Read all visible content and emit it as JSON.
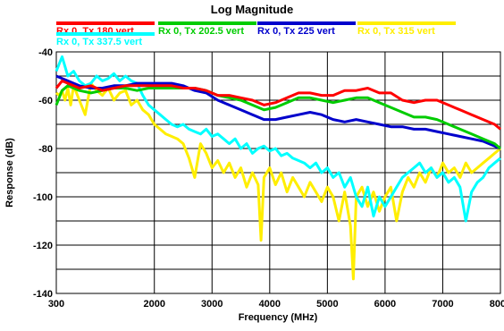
{
  "chart_data": {
    "type": "line",
    "title": "Log Magnitude",
    "xlabel": "Frequency  (MHz)",
    "ylabel": "Response  (dB)",
    "xlim": [
      300,
      8000
    ],
    "ylim": [
      -140,
      -40
    ],
    "x_ticks": [
      300,
      2000,
      3000,
      4000,
      5000,
      6000,
      7000,
      8000
    ],
    "y_ticks": [
      -40,
      -60,
      -80,
      -100,
      -120,
      -140
    ],
    "grid": true,
    "legend_position": "top",
    "series": [
      {
        "name": "Rx 0, Tx 180 vert",
        "color": "#ff0000",
        "x": [
          300,
          400,
          500,
          700,
          900,
          1100,
          1300,
          1500,
          1700,
          1900,
          2100,
          2300,
          2500,
          2700,
          2900,
          3100,
          3300,
          3500,
          3700,
          3900,
          4100,
          4300,
          4500,
          4700,
          4900,
          5100,
          5300,
          5500,
          5700,
          5900,
          6100,
          6300,
          6500,
          6700,
          6900,
          7100,
          7300,
          7500,
          7700,
          7900,
          8000
        ],
        "y": [
          -55,
          -52,
          -53,
          -55,
          -54,
          -56,
          -55,
          -54,
          -54,
          -54,
          -54,
          -54,
          -55,
          -55,
          -56,
          -58,
          -58,
          -59,
          -60,
          -62,
          -61,
          -59,
          -57,
          -57,
          -58,
          -58,
          -56,
          -56,
          -55,
          -57,
          -57,
          -60,
          -61,
          -60,
          -60,
          -62,
          -64,
          -66,
          -68,
          -70,
          -72
        ]
      },
      {
        "name": "Rx 0, Tx 202.5 vert",
        "color": "#00cc00",
        "x": [
          300,
          400,
          500,
          700,
          900,
          1100,
          1300,
          1500,
          1700,
          1900,
          2100,
          2300,
          2500,
          2700,
          2900,
          3100,
          3300,
          3500,
          3700,
          3900,
          4100,
          4300,
          4500,
          4700,
          4900,
          5100,
          5300,
          5500,
          5700,
          5900,
          6100,
          6300,
          6500,
          6700,
          6900,
          7100,
          7300,
          7500,
          7700,
          7900,
          8000
        ],
        "y": [
          -62,
          -56,
          -54,
          -56,
          -57,
          -56,
          -55,
          -55,
          -56,
          -55,
          -55,
          -55,
          -55,
          -55,
          -56,
          -58,
          -59,
          -60,
          -62,
          -64,
          -63,
          -61,
          -59,
          -59,
          -60,
          -61,
          -60,
          -59,
          -59,
          -61,
          -63,
          -65,
          -67,
          -67,
          -68,
          -70,
          -72,
          -74,
          -76,
          -78,
          -80
        ]
      },
      {
        "name": "Rx 0, Tx 225 vert",
        "color": "#0000cc",
        "x": [
          300,
          400,
          500,
          700,
          900,
          1100,
          1300,
          1500,
          1700,
          1900,
          2100,
          2300,
          2500,
          2700,
          2900,
          3100,
          3300,
          3500,
          3700,
          3900,
          4100,
          4300,
          4500,
          4700,
          4900,
          5100,
          5300,
          5500,
          5700,
          5900,
          6100,
          6300,
          6500,
          6700,
          6900,
          7100,
          7300,
          7500,
          7700,
          7900,
          8000
        ],
        "y": [
          -50,
          -51,
          -52,
          -54,
          -55,
          -55,
          -54,
          -54,
          -53,
          -53,
          -53,
          -53,
          -54,
          -56,
          -57,
          -60,
          -62,
          -64,
          -66,
          -68,
          -68,
          -67,
          -66,
          -65,
          -66,
          -68,
          -69,
          -68,
          -69,
          -70,
          -71,
          -71,
          -72,
          -72,
          -73,
          -74,
          -75,
          -76,
          -77,
          -79,
          -80
        ]
      },
      {
        "name": "Rx 0, Tx 315 vert",
        "color": "#ffee00",
        "x": [
          300,
          350,
          400,
          450,
          500,
          550,
          600,
          700,
          800,
          900,
          1000,
          1100,
          1200,
          1300,
          1400,
          1500,
          1600,
          1700,
          1800,
          1900,
          2000,
          2100,
          2200,
          2300,
          2400,
          2500,
          2600,
          2700,
          2800,
          2900,
          3000,
          3100,
          3200,
          3300,
          3400,
          3500,
          3600,
          3700,
          3800,
          3850,
          3900,
          4000,
          4100,
          4200,
          4300,
          4400,
          4500,
          4600,
          4700,
          4800,
          4900,
          5000,
          5100,
          5200,
          5300,
          5400,
          5450,
          5500,
          5600,
          5700,
          5800,
          5900,
          6000,
          6100,
          6200,
          6300,
          6400,
          6500,
          6600,
          6700,
          6800,
          6900,
          7000,
          7100,
          7200,
          7300,
          7400,
          7500,
          7600,
          7700,
          7800,
          7900,
          8000
        ],
        "y": [
          -57,
          -58,
          -56,
          -60,
          -55,
          -62,
          -54,
          -60,
          -66,
          -53,
          -56,
          -58,
          -55,
          -60,
          -57,
          -56,
          -62,
          -60,
          -64,
          -66,
          -70,
          -72,
          -74,
          -75,
          -76,
          -78,
          -84,
          -92,
          -78,
          -82,
          -88,
          -85,
          -90,
          -86,
          -92,
          -88,
          -96,
          -90,
          -95,
          -118,
          -92,
          -88,
          -95,
          -90,
          -98,
          -92,
          -96,
          -100,
          -94,
          -98,
          -102,
          -96,
          -100,
          -110,
          -98,
          -112,
          -134,
          -100,
          -96,
          -104,
          -98,
          -106,
          -100,
          -96,
          -110,
          -98,
          -92,
          -96,
          -90,
          -94,
          -88,
          -92,
          -86,
          -90,
          -88,
          -92,
          -86,
          -90,
          -88,
          -86,
          -84,
          -82,
          -80
        ]
      },
      {
        "name": "Rx 0, Tx 337.5 vert",
        "color": "#00ffff",
        "x": [
          300,
          350,
          400,
          450,
          500,
          600,
          700,
          800,
          900,
          1000,
          1100,
          1200,
          1300,
          1400,
          1500,
          1600,
          1700,
          1800,
          1900,
          2000,
          2100,
          2200,
          2300,
          2400,
          2500,
          2600,
          2700,
          2800,
          2900,
          3000,
          3100,
          3200,
          3300,
          3400,
          3500,
          3600,
          3700,
          3800,
          3900,
          4000,
          4100,
          4200,
          4300,
          4400,
          4500,
          4600,
          4700,
          4800,
          4900,
          5000,
          5100,
          5200,
          5300,
          5400,
          5500,
          5600,
          5700,
          5800,
          5900,
          6000,
          6100,
          6200,
          6300,
          6400,
          6500,
          6600,
          6700,
          6800,
          6900,
          7000,
          7100,
          7200,
          7300,
          7400,
          7500,
          7600,
          7700,
          7800,
          7900,
          8000
        ],
        "y": [
          -48,
          -45,
          -42,
          -46,
          -50,
          -48,
          -52,
          -54,
          -53,
          -50,
          -52,
          -51,
          -49,
          -52,
          -50,
          -52,
          -53,
          -58,
          -62,
          -64,
          -66,
          -68,
          -70,
          -71,
          -70,
          -72,
          -73,
          -74,
          -72,
          -75,
          -74,
          -76,
          -78,
          -76,
          -80,
          -78,
          -82,
          -80,
          -79,
          -81,
          -80,
          -83,
          -82,
          -84,
          -85,
          -86,
          -88,
          -86,
          -90,
          -88,
          -92,
          -90,
          -96,
          -92,
          -100,
          -104,
          -96,
          -108,
          -100,
          -104,
          -100,
          -96,
          -92,
          -90,
          -88,
          -86,
          -90,
          -88,
          -92,
          -90,
          -94,
          -92,
          -96,
          -110,
          -98,
          -94,
          -92,
          -88,
          -86,
          -84
        ]
      }
    ]
  }
}
